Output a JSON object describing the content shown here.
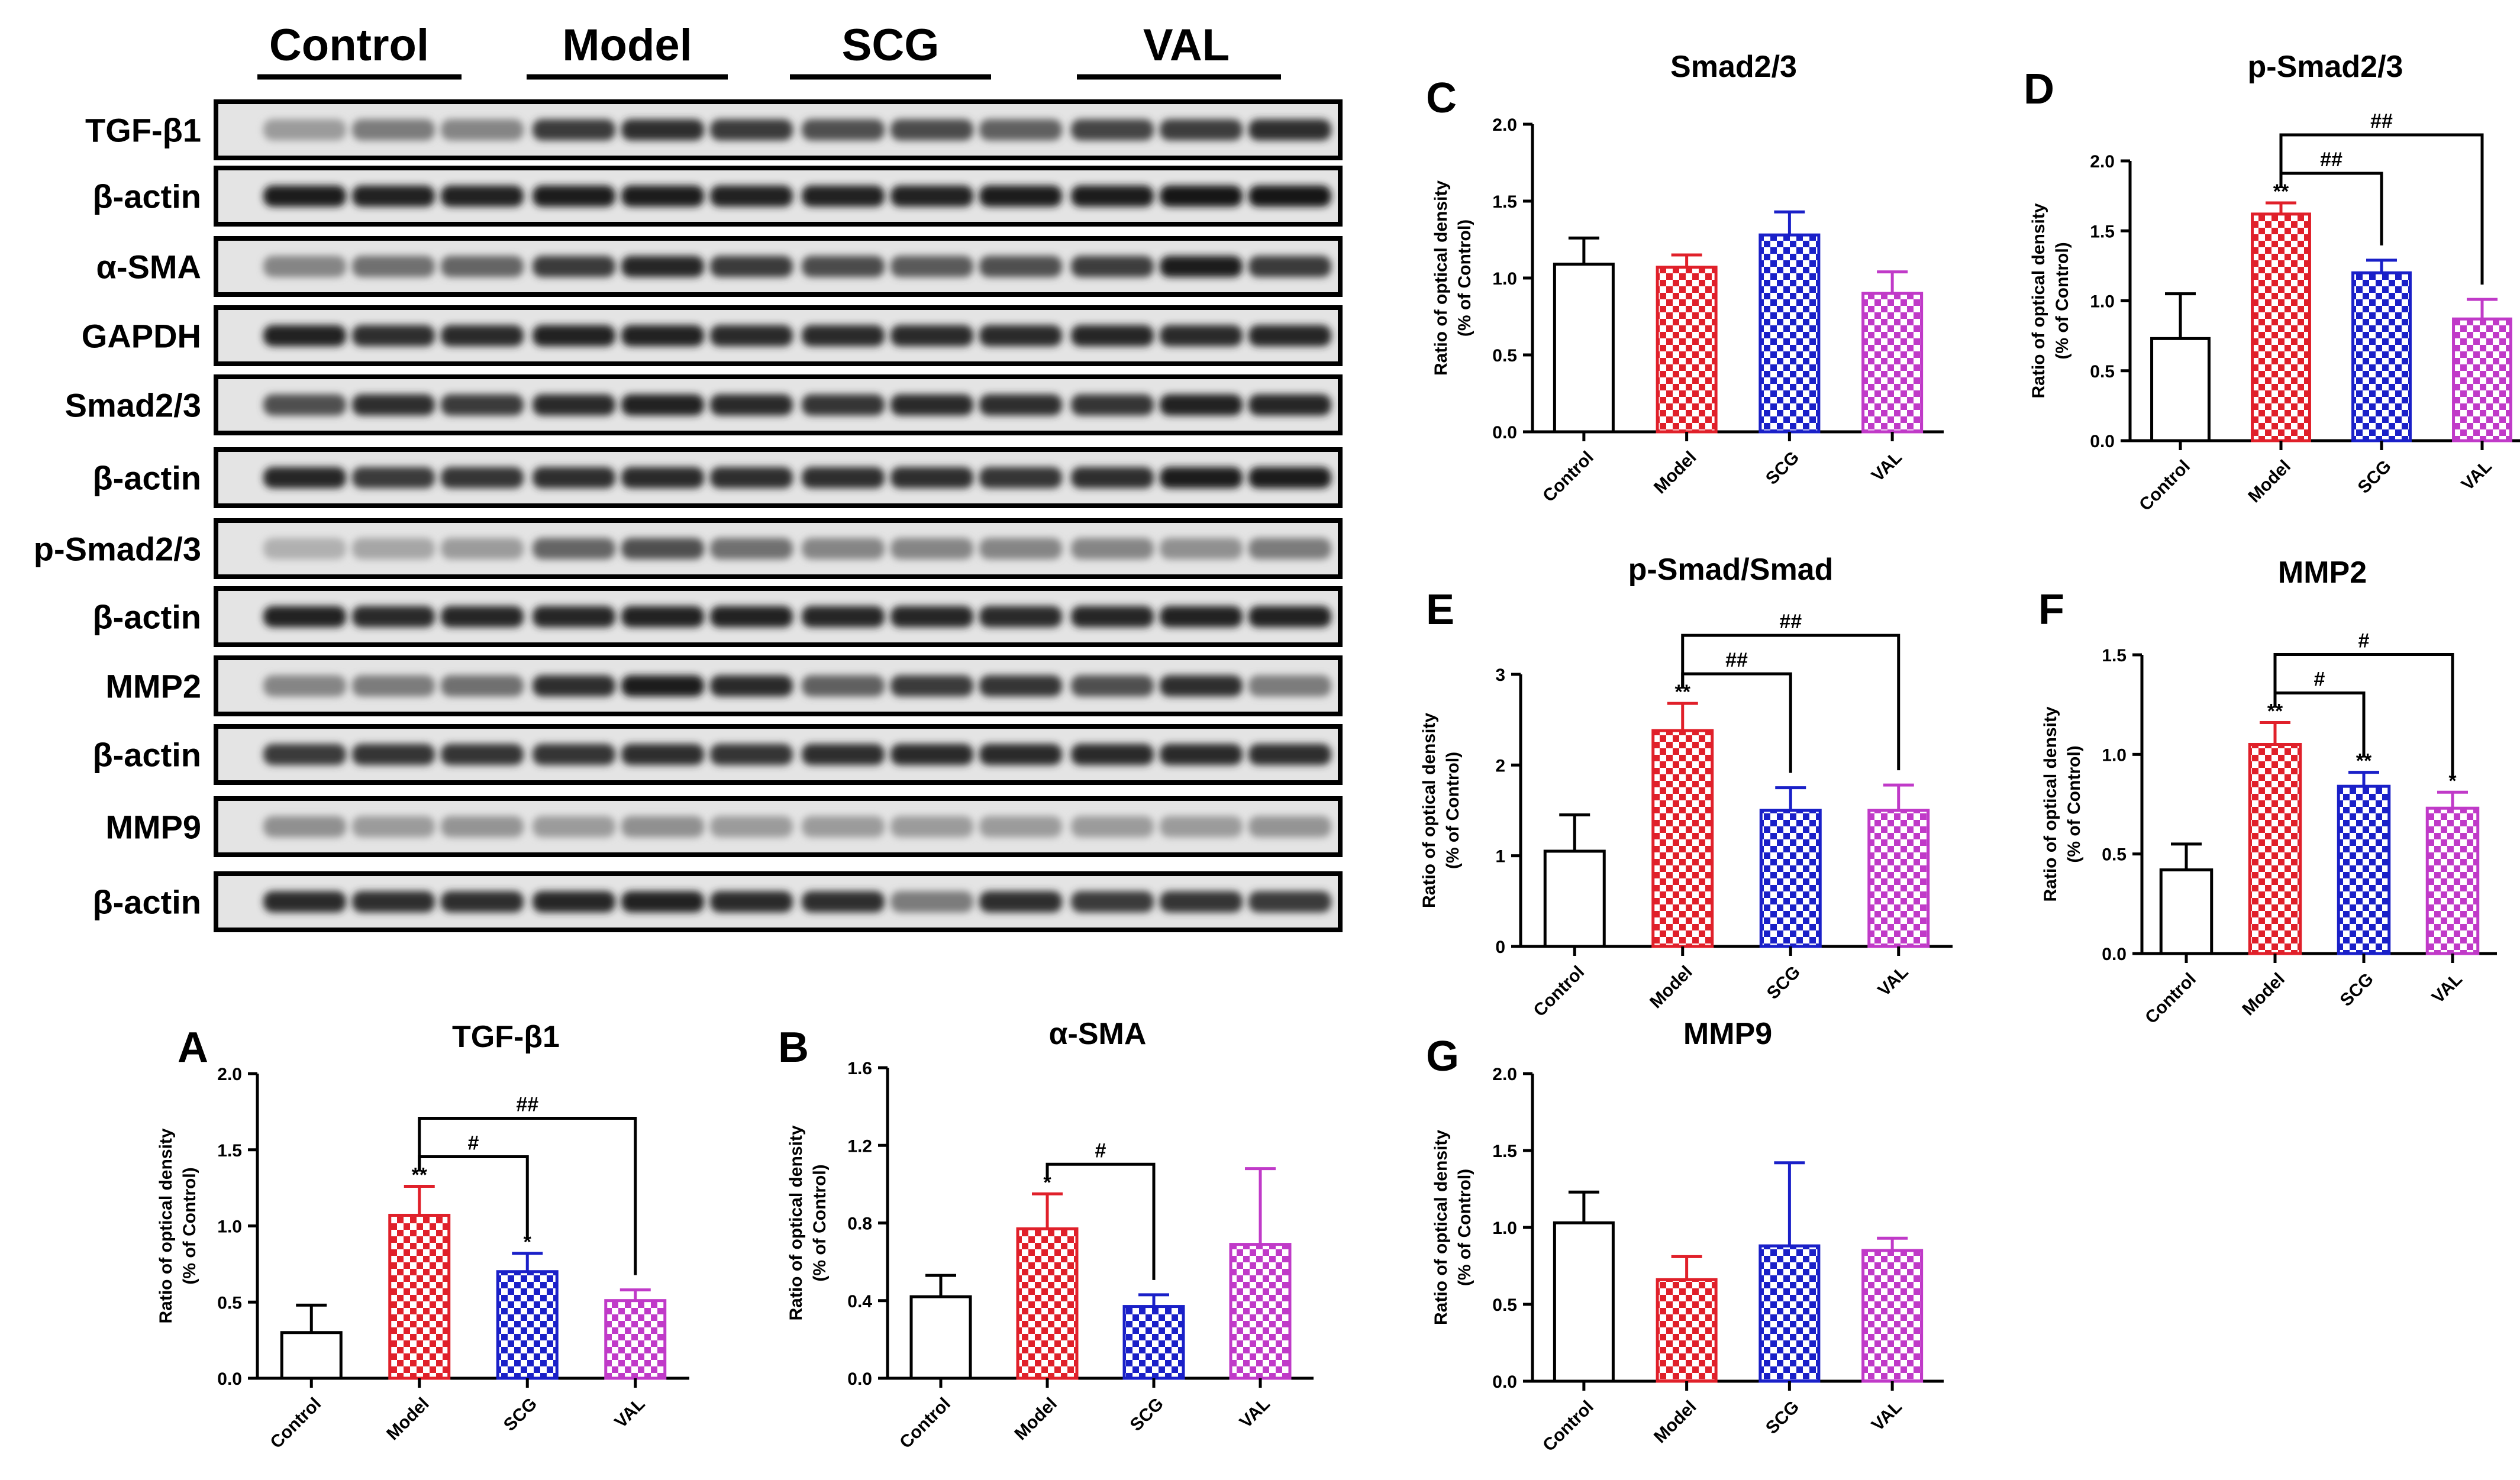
{
  "blot": {
    "groups": [
      "Control",
      "Model",
      "SCG",
      "VAL"
    ],
    "rows": [
      {
        "label": "TGF-β1",
        "intensity": [
          0.35,
          0.5,
          0.45,
          0.8,
          0.85,
          0.8,
          0.7,
          0.72,
          0.62,
          0.75,
          0.78,
          0.85
        ]
      },
      {
        "label": "β-actin",
        "intensity": [
          0.95,
          0.92,
          0.92,
          0.93,
          0.93,
          0.92,
          0.92,
          0.92,
          0.95,
          0.95,
          0.97,
          0.97
        ]
      },
      {
        "label": "α-SMA",
        "intensity": [
          0.45,
          0.55,
          0.6,
          0.8,
          0.9,
          0.8,
          0.72,
          0.65,
          0.7,
          0.78,
          0.95,
          0.8
        ]
      },
      {
        "label": "GAPDH",
        "intensity": [
          0.92,
          0.85,
          0.88,
          0.92,
          0.92,
          0.88,
          0.88,
          0.88,
          0.88,
          0.9,
          0.88,
          0.9
        ]
      },
      {
        "label": "Smad2/3",
        "intensity": [
          0.7,
          0.85,
          0.8,
          0.88,
          0.92,
          0.88,
          0.82,
          0.88,
          0.85,
          0.82,
          0.92,
          0.9
        ]
      },
      {
        "label": "β-actin",
        "intensity": [
          0.9,
          0.8,
          0.82,
          0.85,
          0.88,
          0.85,
          0.85,
          0.85,
          0.82,
          0.85,
          0.95,
          0.95
        ]
      },
      {
        "label": "p-Smad2/3",
        "intensity": [
          0.25,
          0.3,
          0.35,
          0.6,
          0.7,
          0.55,
          0.45,
          0.45,
          0.45,
          0.45,
          0.4,
          0.5
        ]
      },
      {
        "label": "β-actin",
        "intensity": [
          0.92,
          0.88,
          0.9,
          0.9,
          0.92,
          0.92,
          0.9,
          0.9,
          0.88,
          0.9,
          0.92,
          0.92
        ]
      },
      {
        "label": "MMP2",
        "intensity": [
          0.45,
          0.5,
          0.55,
          0.85,
          0.95,
          0.88,
          0.62,
          0.8,
          0.82,
          0.7,
          0.85,
          0.5
        ]
      },
      {
        "label": "β-actin",
        "intensity": [
          0.8,
          0.82,
          0.82,
          0.82,
          0.85,
          0.82,
          0.85,
          0.88,
          0.88,
          0.88,
          0.88,
          0.85
        ]
      },
      {
        "label": "MMP9",
        "intensity": [
          0.4,
          0.35,
          0.38,
          0.35,
          0.4,
          0.35,
          0.35,
          0.35,
          0.35,
          0.35,
          0.35,
          0.38
        ]
      },
      {
        "label": "β-actin",
        "intensity": [
          0.88,
          0.85,
          0.85,
          0.9,
          0.92,
          0.88,
          0.85,
          0.5,
          0.85,
          0.8,
          0.82,
          0.8
        ]
      }
    ]
  },
  "chart_data": [
    {
      "panel": "A",
      "type": "bar",
      "title": "TGF-β1",
      "ylabel": [
        "Ratio of optical density",
        "(% of Control)"
      ],
      "categories": [
        "Control",
        "Model",
        "SCG",
        "VAL"
      ],
      "values": [
        0.3,
        1.07,
        0.7,
        0.51
      ],
      "errors": [
        0.18,
        0.19,
        0.12,
        0.07
      ],
      "ylim": [
        0,
        2.0
      ],
      "yticks": [
        "0.0",
        "0.5",
        "1.0",
        "1.5",
        "2.0"
      ],
      "stars": [
        "",
        "**",
        "*",
        ""
      ],
      "brackets": [
        {
          "to": 2,
          "label": "#"
        },
        {
          "to": 3,
          "label": "##"
        }
      ]
    },
    {
      "panel": "B",
      "type": "bar",
      "title": "α-SMA",
      "ylabel": [
        "Ratio of optical density",
        "(% of Control)"
      ],
      "categories": [
        "Control",
        "Model",
        "SCG",
        "VAL"
      ],
      "values": [
        0.42,
        0.77,
        0.37,
        0.69
      ],
      "errors": [
        0.11,
        0.18,
        0.06,
        0.39
      ],
      "ylim": [
        0,
        1.6
      ],
      "yticks": [
        "0.0",
        "0.4",
        "0.8",
        "1.2",
        "1.6"
      ],
      "stars": [
        "",
        "*",
        "",
        ""
      ],
      "brackets": [
        {
          "to": 2,
          "label": "#"
        }
      ]
    },
    {
      "panel": "C",
      "type": "bar",
      "title": "Smad2/3",
      "ylabel": [
        "Ratio of optical density",
        "(% of Control)"
      ],
      "categories": [
        "Control",
        "Model",
        "SCG",
        "VAL"
      ],
      "values": [
        1.09,
        1.07,
        1.28,
        0.9
      ],
      "errors": [
        0.17,
        0.08,
        0.15,
        0.14
      ],
      "ylim": [
        0,
        2.0
      ],
      "yticks": [
        "0.0",
        "0.5",
        "1.0",
        "1.5",
        "2.0"
      ],
      "stars": [
        "",
        "",
        "",
        ""
      ],
      "brackets": []
    },
    {
      "panel": "D",
      "type": "bar",
      "title": "p-Smad2/3",
      "ylabel": [
        "Ratio of optical density",
        "(% of Control)"
      ],
      "categories": [
        "Control",
        "Model",
        "SCG",
        "VAL"
      ],
      "values": [
        0.73,
        1.62,
        1.2,
        0.87
      ],
      "errors": [
        0.32,
        0.08,
        0.09,
        0.14
      ],
      "ylim": [
        0,
        2.0
      ],
      "yticks": [
        "0.0",
        "0.5",
        "1.0",
        "1.5",
        "2.0"
      ],
      "stars": [
        "",
        "**",
        "",
        ""
      ],
      "brackets": [
        {
          "to": 2,
          "label": "##"
        },
        {
          "to": 3,
          "label": "##"
        }
      ]
    },
    {
      "panel": "E",
      "type": "bar",
      "title": "p-Smad/Smad",
      "ylabel": [
        "Ratio of optical density",
        "(% of Control)"
      ],
      "categories": [
        "Control",
        "Model",
        "SCG",
        "VAL"
      ],
      "values": [
        1.05,
        2.38,
        1.5,
        1.5
      ],
      "errors": [
        0.4,
        0.3,
        0.25,
        0.28
      ],
      "ylim": [
        0,
        3
      ],
      "yticks": [
        "0",
        "1",
        "2",
        "3"
      ],
      "stars": [
        "",
        "**",
        "",
        ""
      ],
      "brackets": [
        {
          "to": 2,
          "label": "##"
        },
        {
          "to": 3,
          "label": "##"
        }
      ]
    },
    {
      "panel": "F",
      "type": "bar",
      "title": "MMP2",
      "ylabel": [
        "Ratio of optical density",
        "(% of Control)"
      ],
      "categories": [
        "Control",
        "Model",
        "SCG",
        "VAL"
      ],
      "values": [
        0.42,
        1.05,
        0.84,
        0.73
      ],
      "errors": [
        0.13,
        0.11,
        0.07,
        0.08
      ],
      "ylim": [
        0,
        1.5
      ],
      "yticks": [
        "0.0",
        "0.5",
        "1.0",
        "1.5"
      ],
      "stars": [
        "",
        "**",
        "**",
        "*"
      ],
      "brackets": [
        {
          "to": 2,
          "label": "#"
        },
        {
          "to": 3,
          "label": "#"
        }
      ]
    },
    {
      "panel": "G",
      "type": "bar",
      "title": "MMP9",
      "ylabel": [
        "Ratio of optical density",
        "(% of Control)"
      ],
      "categories": [
        "Control",
        "Model",
        "SCG",
        "VAL"
      ],
      "values": [
        1.03,
        0.66,
        0.88,
        0.85
      ],
      "errors": [
        0.2,
        0.15,
        0.54,
        0.08
      ],
      "ylim": [
        0,
        2.0
      ],
      "yticks": [
        "0.0",
        "0.5",
        "1.0",
        "1.5",
        "2.0"
      ],
      "stars": [
        "",
        "",
        "",
        ""
      ],
      "brackets": []
    }
  ],
  "colors": {
    "control": "#000000",
    "model": "#e0202a",
    "scg": "#1a20c8",
    "val": "#c03ac8"
  }
}
